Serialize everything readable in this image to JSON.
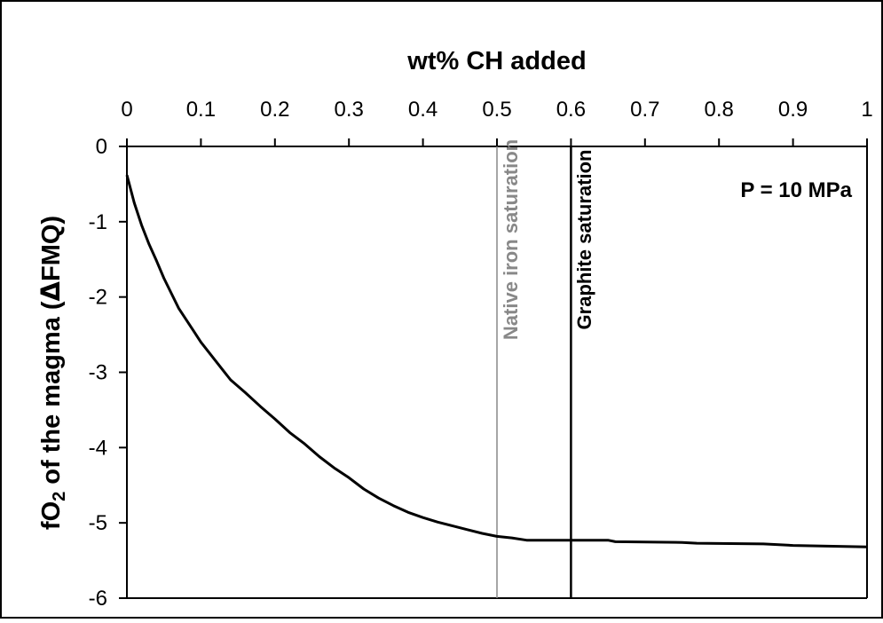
{
  "chart_data": {
    "type": "line",
    "xlabel": "wt% CH added",
    "ylabel_main": "fO",
    "ylabel_sub": "2",
    "ylabel_rest": " of the magma (",
    "ylabel_symbol": "Δ",
    "ylabel_end": "FMQ)",
    "xlim": [
      0,
      1
    ],
    "ylim": [
      -6,
      0
    ],
    "x_ticks": [
      0,
      0.1,
      0.2,
      0.3,
      0.4,
      0.5,
      0.6,
      0.7,
      0.8,
      0.9,
      1
    ],
    "x_tick_labels": [
      "0",
      "0.1",
      "0.2",
      "0.3",
      "0.4",
      "0.5",
      "0.6",
      "0.7",
      "0.8",
      "0.9",
      "1"
    ],
    "y_ticks": [
      0,
      -1,
      -2,
      -3,
      -4,
      -5,
      -6
    ],
    "y_tick_labels": [
      "0",
      "-1",
      "-2",
      "-3",
      "-4",
      "-5",
      "-6"
    ],
    "grid": false,
    "x_axis_position": "top",
    "series": [
      {
        "color": "#000000",
        "points": [
          [
            0.0,
            -0.38
          ],
          [
            0.01,
            -0.75
          ],
          [
            0.02,
            -1.05
          ],
          [
            0.03,
            -1.3
          ],
          [
            0.04,
            -1.52
          ],
          [
            0.05,
            -1.75
          ],
          [
            0.06,
            -1.95
          ],
          [
            0.07,
            -2.15
          ],
          [
            0.08,
            -2.3
          ],
          [
            0.09,
            -2.45
          ],
          [
            0.1,
            -2.6
          ],
          [
            0.12,
            -2.85
          ],
          [
            0.14,
            -3.1
          ],
          [
            0.16,
            -3.27
          ],
          [
            0.18,
            -3.45
          ],
          [
            0.2,
            -3.62
          ],
          [
            0.22,
            -3.8
          ],
          [
            0.24,
            -3.95
          ],
          [
            0.26,
            -4.12
          ],
          [
            0.28,
            -4.27
          ],
          [
            0.3,
            -4.4
          ],
          [
            0.32,
            -4.55
          ],
          [
            0.34,
            -4.67
          ],
          [
            0.36,
            -4.77
          ],
          [
            0.38,
            -4.86
          ],
          [
            0.4,
            -4.93
          ],
          [
            0.42,
            -4.99
          ],
          [
            0.44,
            -5.04
          ],
          [
            0.46,
            -5.09
          ],
          [
            0.48,
            -5.14
          ],
          [
            0.5,
            -5.18
          ],
          [
            0.52,
            -5.2
          ],
          [
            0.54,
            -5.23
          ],
          [
            0.6,
            -5.23
          ],
          [
            0.65,
            -5.23
          ],
          [
            0.66,
            -5.25
          ],
          [
            0.75,
            -5.26
          ],
          [
            0.77,
            -5.27
          ],
          [
            0.86,
            -5.28
          ],
          [
            0.9,
            -5.3
          ],
          [
            1.0,
            -5.32
          ]
        ]
      }
    ],
    "vertical_lines": [
      {
        "x": 0.5,
        "label": "Native iron saturation",
        "color": "#888888"
      },
      {
        "x": 0.6,
        "label": "Graphite saturation",
        "color": "#000000"
      }
    ],
    "annotations": [
      {
        "text": "P = 10 MPa"
      }
    ]
  }
}
